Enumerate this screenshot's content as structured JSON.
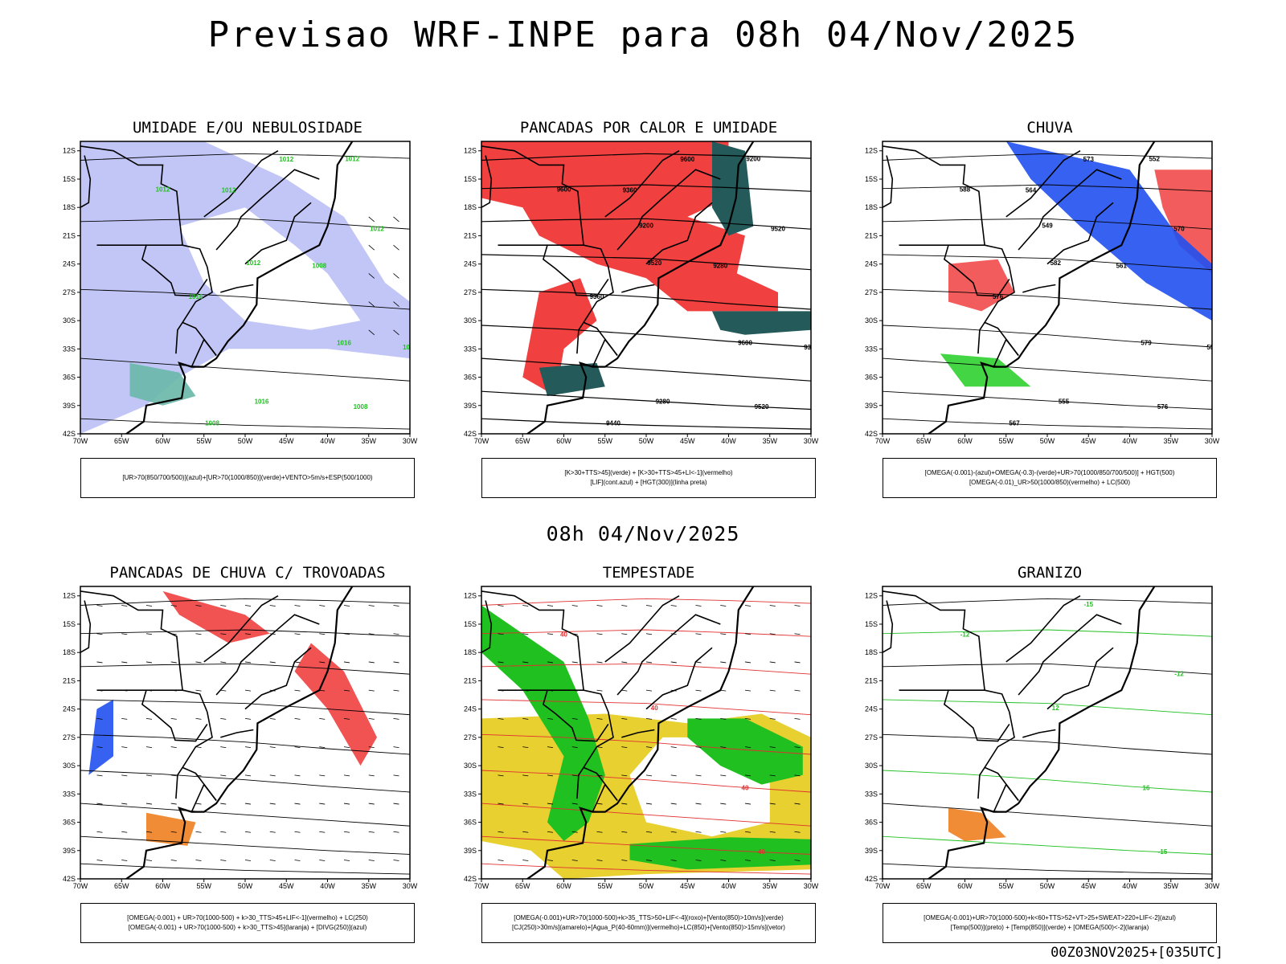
{
  "header": {
    "main_title": "Previsao WRF-INPE  para 08h 04/Nov/2025",
    "mid_title": "08h 04/Nov/2025",
    "footer": "00Z03NOV2025+[035UTC]"
  },
  "axes": {
    "lat_ticks": [
      "12S",
      "15S",
      "18S",
      "21S",
      "24S",
      "27S",
      "30S",
      "33S",
      "36S",
      "39S",
      "42S"
    ],
    "lon_ticks": [
      "70W",
      "65W",
      "60W",
      "55W",
      "50W",
      "45W",
      "40W",
      "35W",
      "30W"
    ]
  },
  "panels": [
    {
      "id": "umidade",
      "title": "UMIDADE E/OU NEBULOSIDADE",
      "legend": [
        "[UR>70(850/700/500)](azul)+[UR>70(1000/850)](verde)+VENTO>5m/s+ESP(500/1000)"
      ],
      "contour_labels": [
        "1012",
        "1012",
        "1016",
        "1008",
        "1012",
        "1012",
        "1016",
        "1012",
        "1008",
        "1012",
        "1008",
        "1012",
        "1016",
        "1012"
      ]
    },
    {
      "id": "pancadas-calor",
      "title": "PANCADAS POR CALOR E UMIDADE",
      "legend": [
        "[K>30+TTS>45](verde) + [K>30+TTS>45+LI<-1](vermelho)",
        "[LIF](cont.azul) + [HGT(300)](linha preta)"
      ],
      "contour_labels": [
        "9600",
        "9520",
        "9600",
        "9520",
        "9600",
        "9520",
        "9360",
        "9440",
        "9440",
        "9360",
        "9280",
        "9360",
        "9280",
        "9200",
        "9200"
      ]
    },
    {
      "id": "chuva",
      "title": "CHUVA",
      "legend": [
        "[OMEGA(-0.001)-(azul)+OMEGA(-0.3)-(verde)+UR>70(1000/850/700/500)] + HGT(500)",
        "[OMEGA(-0.01)_UR>50(1000/850)(vermelho) + LC(500)"
      ],
      "contour_labels": [
        "588",
        "582",
        "579",
        "576",
        "573",
        "570",
        "576",
        "570",
        "567",
        "564",
        "561",
        "558",
        "555",
        "552",
        "549"
      ]
    },
    {
      "id": "pancadas-trovoadas",
      "title": "PANCADAS DE CHUVA C/ TROVOADAS",
      "legend": [
        "[OMEGA(-0.001) + UR>70(1000-500) + k>30_TTS>45+LIF<-1](vermelho) + LC(250)",
        "[OMEGA(-0.001) + UR>70(1000-500) + k>30_TTS>45](laranja) + [DIVG(250)](azul)"
      ],
      "contour_labels": []
    },
    {
      "id": "tempestade",
      "title": "TEMPESTADE",
      "legend": [
        "[OMEGA(-0.001)+UR>70(1000-500)+k>35_TTS>50+LIF<-4](roxo)+[Vento(850)>10m/s](verde)",
        "[CJ(250)>30m/s](amarelo)+[Agua_P(40-60mm)](vermelho)+LC(850)+[Vento(850)>15m/s](vetor)"
      ],
      "contour_labels": [
        "40",
        "40",
        "40",
        "40"
      ]
    },
    {
      "id": "granizo",
      "title": "GRANIZO",
      "legend": [
        "[OMEGA(-0.001)+UR>70(1000-500)+k<60+TTS>52+VT>25+SWEAT>220+LIF<-2](azul)",
        "[Temp(500)](preto) + [Temp(850)](verde) + [OMEGA(500)<-2](laranja)"
      ],
      "contour_labels": [
        "-12",
        "12",
        "16",
        "-15",
        "-15",
        "-12"
      ]
    }
  ]
}
